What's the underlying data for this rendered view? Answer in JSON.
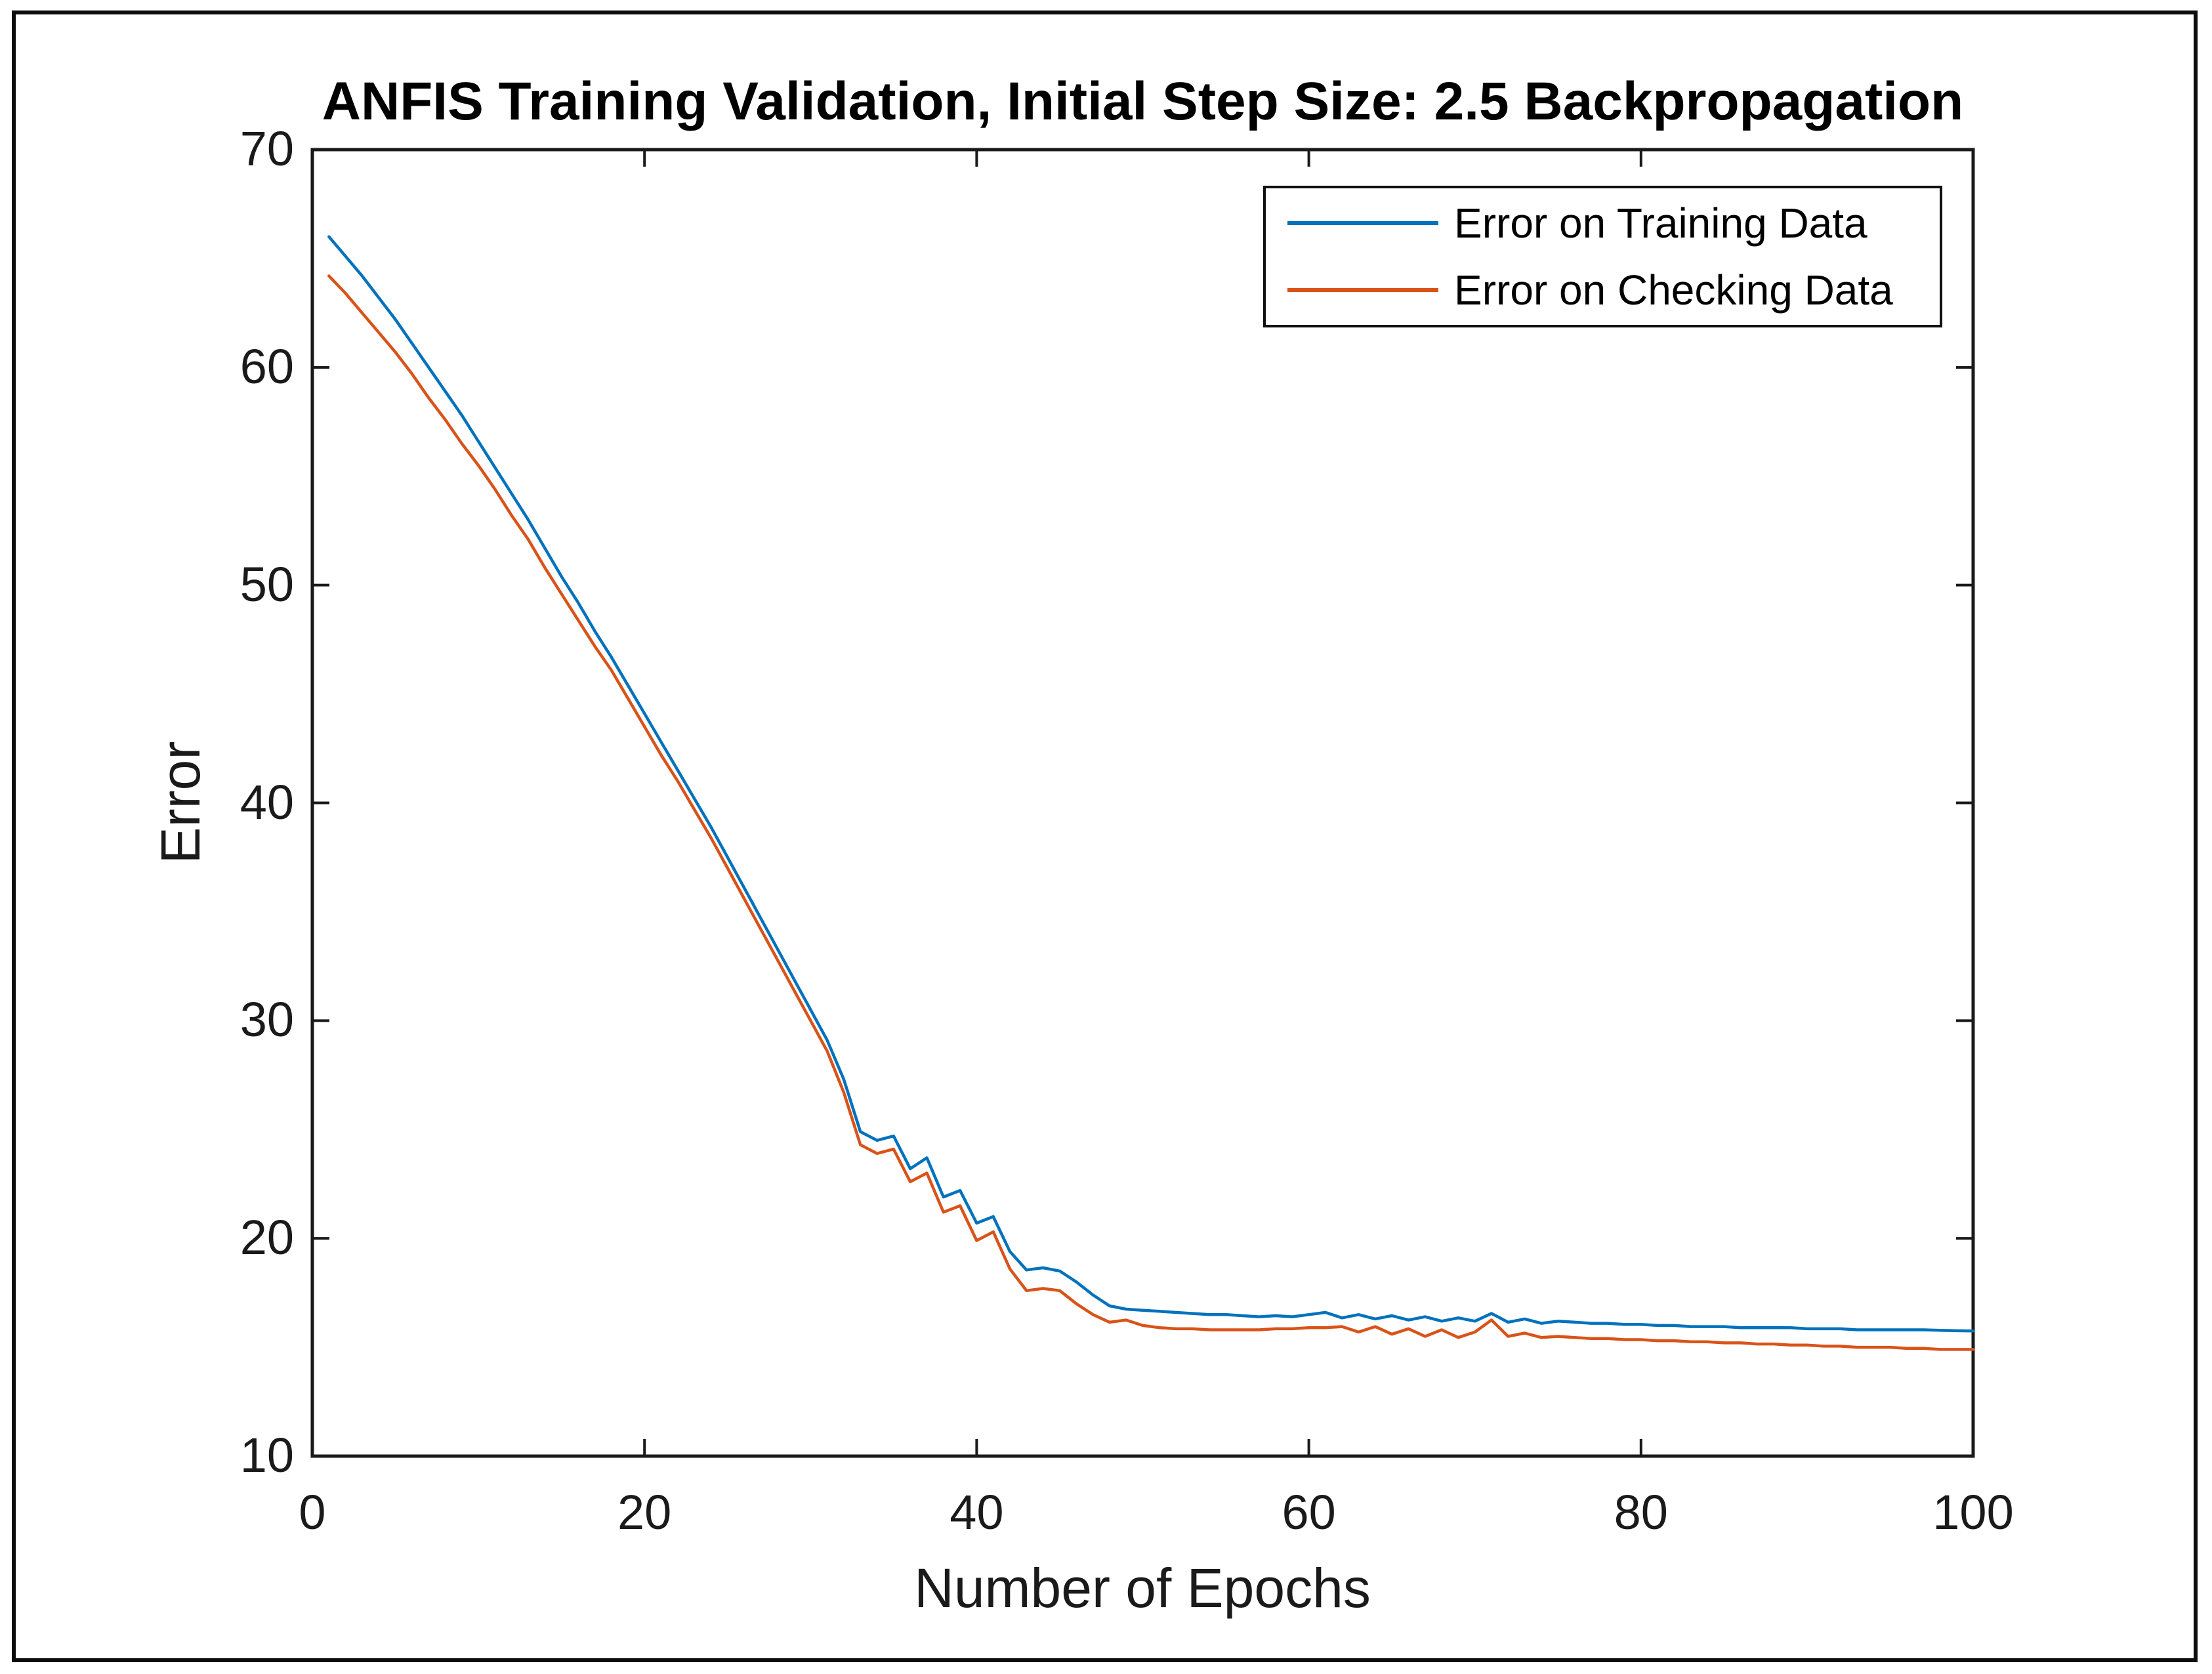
{
  "figure": {
    "background": "#ffffff",
    "border_color": "#0d0d0d",
    "axis_color": "#1a1a1a",
    "text_color": "#000000"
  },
  "chart_data": {
    "type": "line",
    "title": "ANFIS Training Validation, Initial Step Size: 2.5 Backpropagation",
    "xlabel": "Number of Epochs",
    "ylabel": "Error",
    "xlim": [
      0,
      100
    ],
    "ylim": [
      10,
      70
    ],
    "x_ticks": [
      0,
      20,
      40,
      60,
      80,
      100
    ],
    "y_ticks": [
      10,
      20,
      30,
      40,
      50,
      60,
      70
    ],
    "grid": false,
    "legend_position": "top-right",
    "x": [
      1,
      2,
      3,
      4,
      5,
      6,
      7,
      8,
      9,
      10,
      11,
      12,
      13,
      14,
      15,
      16,
      17,
      18,
      19,
      20,
      21,
      22,
      23,
      24,
      25,
      26,
      27,
      28,
      29,
      30,
      31,
      32,
      33,
      34,
      35,
      36,
      37,
      38,
      39,
      40,
      41,
      42,
      43,
      44,
      45,
      46,
      47,
      48,
      49,
      50,
      51,
      52,
      53,
      54,
      55,
      56,
      57,
      58,
      59,
      60,
      61,
      62,
      63,
      64,
      65,
      66,
      67,
      68,
      69,
      70,
      71,
      72,
      73,
      74,
      75,
      76,
      77,
      78,
      79,
      80,
      81,
      82,
      83,
      84,
      85,
      86,
      87,
      88,
      89,
      90,
      91,
      92,
      93,
      94,
      95,
      96,
      97,
      98,
      99,
      100
    ],
    "series": [
      {
        "name": "Error on Training Data",
        "color": "#0072BD",
        "values": [
          66.0,
          65.1,
          64.2,
          63.2,
          62.2,
          61.1,
          60.0,
          58.9,
          57.8,
          56.6,
          55.4,
          54.2,
          53.0,
          51.7,
          50.4,
          49.2,
          47.9,
          46.7,
          45.4,
          44.1,
          42.8,
          41.5,
          40.2,
          38.9,
          37.5,
          36.1,
          34.7,
          33.3,
          31.9,
          30.5,
          29.1,
          27.3,
          24.9,
          24.5,
          24.7,
          23.2,
          23.7,
          21.9,
          22.2,
          20.7,
          21.0,
          19.4,
          18.55,
          18.65,
          18.5,
          18.0,
          17.4,
          16.9,
          16.75,
          16.7,
          16.65,
          16.6,
          16.55,
          16.5,
          16.5,
          16.45,
          16.4,
          16.45,
          16.4,
          16.5,
          16.6,
          16.35,
          16.5,
          16.3,
          16.45,
          16.25,
          16.4,
          16.2,
          16.35,
          16.2,
          16.55,
          16.15,
          16.3,
          16.1,
          16.2,
          16.15,
          16.1,
          16.1,
          16.05,
          16.05,
          16.0,
          16.0,
          15.95,
          15.95,
          15.95,
          15.9,
          15.9,
          15.9,
          15.9,
          15.85,
          15.85,
          15.85,
          15.8,
          15.8,
          15.8,
          15.8,
          15.8,
          15.78,
          15.76,
          15.75
        ]
      },
      {
        "name": "Error on Checking Data",
        "color": "#D95319",
        "values": [
          64.2,
          63.4,
          62.5,
          61.6,
          60.7,
          59.7,
          58.6,
          57.6,
          56.5,
          55.5,
          54.4,
          53.2,
          52.1,
          50.8,
          49.6,
          48.4,
          47.2,
          46.1,
          44.8,
          43.5,
          42.2,
          41.0,
          39.7,
          38.4,
          37.0,
          35.6,
          34.2,
          32.8,
          31.4,
          30.0,
          28.6,
          26.7,
          24.3,
          23.9,
          24.1,
          22.6,
          23.0,
          21.2,
          21.5,
          19.9,
          20.3,
          18.6,
          17.6,
          17.7,
          17.6,
          17.0,
          16.5,
          16.15,
          16.25,
          16.0,
          15.9,
          15.85,
          15.85,
          15.8,
          15.8,
          15.8,
          15.8,
          15.85,
          15.85,
          15.9,
          15.9,
          15.95,
          15.7,
          15.95,
          15.6,
          15.85,
          15.5,
          15.8,
          15.45,
          15.7,
          16.25,
          15.5,
          15.65,
          15.45,
          15.5,
          15.45,
          15.4,
          15.4,
          15.35,
          15.35,
          15.3,
          15.3,
          15.25,
          15.25,
          15.2,
          15.2,
          15.15,
          15.15,
          15.1,
          15.1,
          15.05,
          15.05,
          15.0,
          15.0,
          15.0,
          14.95,
          14.95,
          14.9,
          14.9,
          14.9
        ]
      }
    ]
  }
}
